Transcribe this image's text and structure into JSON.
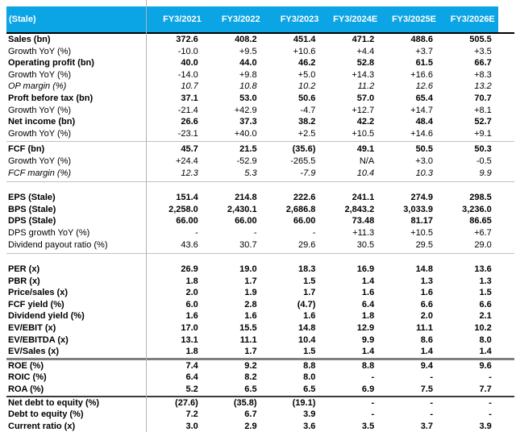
{
  "header": {
    "corner_label": "(Stale)",
    "columns": [
      "FY3/2021",
      "FY3/2022",
      "FY3/2023",
      "FY3/2024E",
      "FY3/2025E",
      "FY3/2026E"
    ]
  },
  "palette": {
    "header_bg": "#0ba4e4",
    "header_text": "#ffffff",
    "header_underline": "#000000",
    "divider_light": "#c0c0c0",
    "divider_thick": "#808080",
    "divider_dark": "#3a3a3a",
    "grid_vline": "#b3b3b3"
  },
  "sections": [
    {
      "name": "profit-and-loss",
      "divider_after": "light",
      "rows": [
        {
          "label": "Sales (bn)",
          "style": "bold",
          "values": [
            "372.6",
            "408.2",
            "451.4",
            "471.2",
            "488.6",
            "505.5"
          ]
        },
        {
          "label": "Growth YoY (%)",
          "style": "normal",
          "values": [
            "-10.0",
            "+9.5",
            "+10.6",
            "+4.4",
            "+3.7",
            "+3.5"
          ]
        },
        {
          "label": "Operating profit (bn)",
          "style": "bold",
          "values": [
            "40.0",
            "44.0",
            "46.2",
            "52.8",
            "61.5",
            "66.7"
          ]
        },
        {
          "label": "Growth YoY (%)",
          "style": "normal",
          "values": [
            "-14.0",
            "+9.8",
            "+5.0",
            "+14.3",
            "+16.6",
            "+8.3"
          ]
        },
        {
          "label": "OP margin (%)",
          "style": "italic",
          "values": [
            "10.7",
            "10.8",
            "10.2",
            "11.2",
            "12.6",
            "13.2"
          ]
        },
        {
          "label": "Proft before tax (bn)",
          "style": "bold",
          "values": [
            "37.1",
            "53.0",
            "50.6",
            "57.0",
            "65.4",
            "70.7"
          ]
        },
        {
          "label": "Growth YoY (%)",
          "style": "normal",
          "values": [
            "-21.4",
            "+42.9",
            "-4.7",
            "+12.7",
            "+14.7",
            "+8.1"
          ]
        },
        {
          "label": "Net income (bn)",
          "style": "bold",
          "values": [
            "26.6",
            "37.3",
            "38.2",
            "42.2",
            "48.4",
            "52.7"
          ]
        },
        {
          "label": "Growth YoY (%)",
          "style": "normal",
          "values": [
            "-23.1",
            "+40.0",
            "+2.5",
            "+10.5",
            "+14.6",
            "+9.1"
          ]
        }
      ]
    },
    {
      "name": "free-cash-flow",
      "divider_after": "light-gap",
      "rows": [
        {
          "label": "FCF (bn)",
          "style": "bold",
          "values": [
            "45.7",
            "21.5",
            "(35.6)",
            "49.1",
            "50.5",
            "50.3"
          ]
        },
        {
          "label": "Growth YoY (%)",
          "style": "normal",
          "values": [
            "+24.4",
            "-52.9",
            "-265.5",
            "N/A",
            "+3.0",
            "-0.5"
          ]
        },
        {
          "label": "FCF margin (%)",
          "style": "italic",
          "values": [
            "12.3",
            "5.3",
            "-7.9",
            "10.4",
            "10.3",
            "9.9"
          ]
        }
      ]
    },
    {
      "name": "per-share",
      "divider_after": "light-gap",
      "rows": [
        {
          "label": "EPS (Stale)",
          "style": "bold",
          "values": [
            "151.4",
            "214.8",
            "222.6",
            "241.1",
            "274.9",
            "298.5"
          ]
        },
        {
          "label": "BPS (Stale)",
          "style": "bold",
          "values": [
            "2,258.0",
            "2,430.1",
            "2,686.8",
            "2,843.2",
            "3,033.9",
            "3,236.0"
          ]
        },
        {
          "label": "DPS (Stale)",
          "style": "bold",
          "values": [
            "66.00",
            "66.00",
            "66.00",
            "73.48",
            "81.17",
            "86.65"
          ]
        },
        {
          "label": "DPS growth YoY (%)",
          "style": "normal",
          "values": [
            "-",
            "-",
            "-",
            "+11.3",
            "+10.5",
            "+6.7"
          ]
        },
        {
          "label": "Dividend payout ratio (%)",
          "style": "normal",
          "values": [
            "43.6",
            "30.7",
            "29.6",
            "30.5",
            "29.5",
            "29.0"
          ]
        }
      ]
    },
    {
      "name": "valuation",
      "divider_after": "thick",
      "rows": [
        {
          "label": "PER (x)",
          "style": "bold",
          "values": [
            "26.9",
            "19.0",
            "18.3",
            "16.9",
            "14.8",
            "13.6"
          ]
        },
        {
          "label": "PBR (x)",
          "style": "bold",
          "values": [
            "1.8",
            "1.7",
            "1.5",
            "1.4",
            "1.3",
            "1.3"
          ]
        },
        {
          "label": "Price/sales (x)",
          "style": "bold",
          "values": [
            "2.0",
            "1.9",
            "1.7",
            "1.6",
            "1.6",
            "1.5"
          ]
        },
        {
          "label": "FCF yield (%)",
          "style": "bold",
          "values": [
            "6.0",
            "2.8",
            "(4.7)",
            "6.4",
            "6.6",
            "6.6"
          ]
        },
        {
          "label": "Dividend yield (%)",
          "style": "bold",
          "values": [
            "1.6",
            "1.6",
            "1.6",
            "1.8",
            "2.0",
            "2.1"
          ]
        },
        {
          "label": "EV/EBIT (x)",
          "style": "bold",
          "values": [
            "17.0",
            "15.5",
            "14.8",
            "12.9",
            "11.1",
            "10.2"
          ]
        },
        {
          "label": "EV/EBITDA (x)",
          "style": "bold",
          "values": [
            "13.1",
            "11.1",
            "10.4",
            "9.9",
            "8.6",
            "8.0"
          ]
        },
        {
          "label": "EV/Sales (x)",
          "style": "bold",
          "values": [
            "1.8",
            "1.7",
            "1.5",
            "1.4",
            "1.4",
            "1.4"
          ]
        }
      ]
    },
    {
      "name": "returns",
      "divider_after": "dark",
      "rows": [
        {
          "label": "ROE (%)",
          "style": "bold",
          "values": [
            "7.4",
            "9.2",
            "8.8",
            "8.8",
            "9.4",
            "9.6"
          ]
        },
        {
          "label": "ROIC (%)",
          "style": "bold",
          "values": [
            "6.4",
            "8.2",
            "8.0",
            "-",
            "-",
            "-"
          ]
        },
        {
          "label": "ROA (%)",
          "style": "bold",
          "values": [
            "5.2",
            "6.5",
            "6.5",
            "6.9",
            "7.5",
            "7.7"
          ]
        }
      ]
    },
    {
      "name": "balance-sheet",
      "divider_after": "none",
      "rows": [
        {
          "label": "Net debt to equity (%)",
          "style": "bold",
          "values": [
            "(27.6)",
            "(35.8)",
            "(19.1)",
            "-",
            "-",
            "-"
          ]
        },
        {
          "label": "Debt to equity (%)",
          "style": "bold",
          "values": [
            "7.2",
            "6.7",
            "3.9",
            "-",
            "-",
            "-"
          ]
        },
        {
          "label": "Current ratio (x)",
          "style": "bold",
          "values": [
            "3.0",
            "2.9",
            "3.6",
            "3.5",
            "3.7",
            "3.9"
          ]
        }
      ]
    }
  ]
}
